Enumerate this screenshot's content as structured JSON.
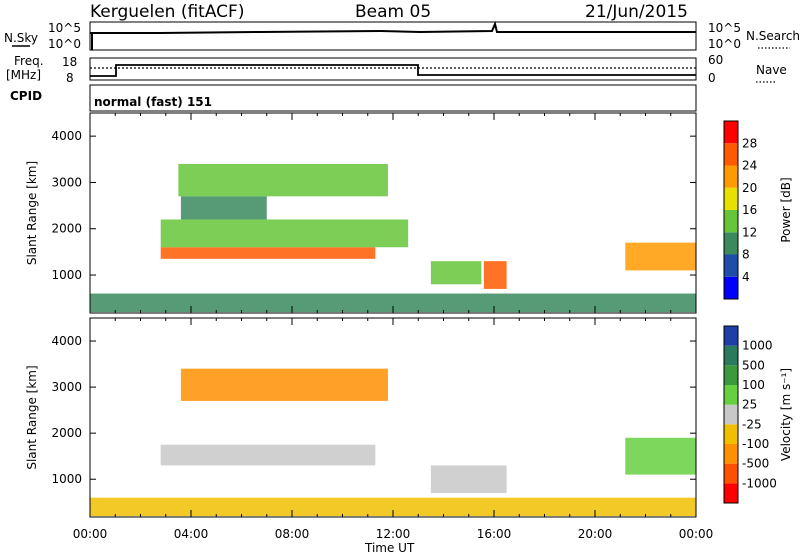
{
  "header": {
    "station": "Kerguelen (fitACF)",
    "beam": "Beam 05",
    "date": "21/Jun/2015"
  },
  "top_panels": {
    "nsky_label": "N.Sky",
    "nsky_ticks": [
      "10^5",
      "10^0"
    ],
    "nsearch_label": "N.Search",
    "nsearch_ticks": [
      "10^5",
      "10^0"
    ],
    "freq_label_1": "Freq.",
    "freq_label_2": "[MHz]",
    "freq_ticks": [
      "18",
      "8"
    ],
    "nave_label": "Nave",
    "nave_ticks": [
      "60",
      "0"
    ],
    "cpid_label": "CPID",
    "cpid_value": "normal (fast) 151"
  },
  "chart_data": [
    {
      "type": "heatmap",
      "name": "power",
      "xlabel": "",
      "ylabel": "Slant Range [km]",
      "y_ticks": [
        "4000",
        "3000",
        "2000",
        "1000"
      ],
      "ylim": [
        180,
        4500
      ],
      "xlim": [
        0,
        24
      ],
      "colorbar_label": "Power [dB]",
      "colorbar_ticks": [
        "28",
        "24",
        "20",
        "16",
        "12",
        "8",
        "4"
      ],
      "colorbar_colors": [
        "#0000ff",
        "#1e4ea8",
        "#3a8a5e",
        "#66c63a",
        "#e8e000",
        "#ff9a00",
        "#ff5a00",
        "#ff0000"
      ],
      "echo_regions": [
        {
          "t0": 2.8,
          "t1": 11.3,
          "r0": 1350,
          "r1": 1600,
          "level": 26
        },
        {
          "t0": 2.8,
          "t1": 12.6,
          "r0": 1600,
          "r1": 2200,
          "level": 14
        },
        {
          "t0": 3.5,
          "t1": 11.8,
          "r0": 2700,
          "r1": 3400,
          "level": 15
        },
        {
          "t0": 3.6,
          "t1": 7.0,
          "r0": 2200,
          "r1": 2700,
          "level": 10
        },
        {
          "t0": 13.5,
          "t1": 15.5,
          "r0": 800,
          "r1": 1300,
          "level": 12
        },
        {
          "t0": 15.6,
          "t1": 16.5,
          "r0": 700,
          "r1": 1300,
          "level": 24
        },
        {
          "t0": 21.2,
          "t1": 24.0,
          "r0": 1100,
          "r1": 1700,
          "level": 20
        },
        {
          "t0": 0.0,
          "t1": 24.0,
          "r0": 200,
          "r1": 600,
          "level": 8
        }
      ]
    },
    {
      "type": "heatmap",
      "name": "velocity",
      "xlabel": "Time UT",
      "ylabel": "Slant Range [km]",
      "x_ticks": [
        "00:00",
        "04:00",
        "08:00",
        "12:00",
        "16:00",
        "20:00",
        "00:00"
      ],
      "y_ticks": [
        "4000",
        "3000",
        "2000",
        "1000"
      ],
      "ylim": [
        180,
        4500
      ],
      "xlim": [
        0,
        24
      ],
      "colorbar_label": "Velocity [m s⁻¹]",
      "colorbar_ticks": [
        "1000",
        "500",
        "100",
        "25",
        "-25",
        "-100",
        "-500",
        "-1000"
      ],
      "colorbar_colors": [
        "#1e3ea8",
        "#2a7a5e",
        "#3c9a3c",
        "#66d040",
        "#c8c8c8",
        "#f0c000",
        "#ff9000",
        "#ff5000",
        "#ff0000"
      ],
      "echo_regions": [
        {
          "t0": 2.8,
          "t1": 11.3,
          "r0": 1300,
          "r1": 1750,
          "level": 0
        },
        {
          "t0": 3.6,
          "t1": 11.8,
          "r0": 2700,
          "r1": 3400,
          "level": -100
        },
        {
          "t0": 13.5,
          "t1": 16.5,
          "r0": 700,
          "r1": 1300,
          "level": 0
        },
        {
          "t0": 21.2,
          "t1": 24.0,
          "r0": 1100,
          "r1": 1900,
          "level": 100
        },
        {
          "t0": 0.0,
          "t1": 24.0,
          "r0": 200,
          "r1": 600,
          "level": -25
        }
      ]
    }
  ]
}
